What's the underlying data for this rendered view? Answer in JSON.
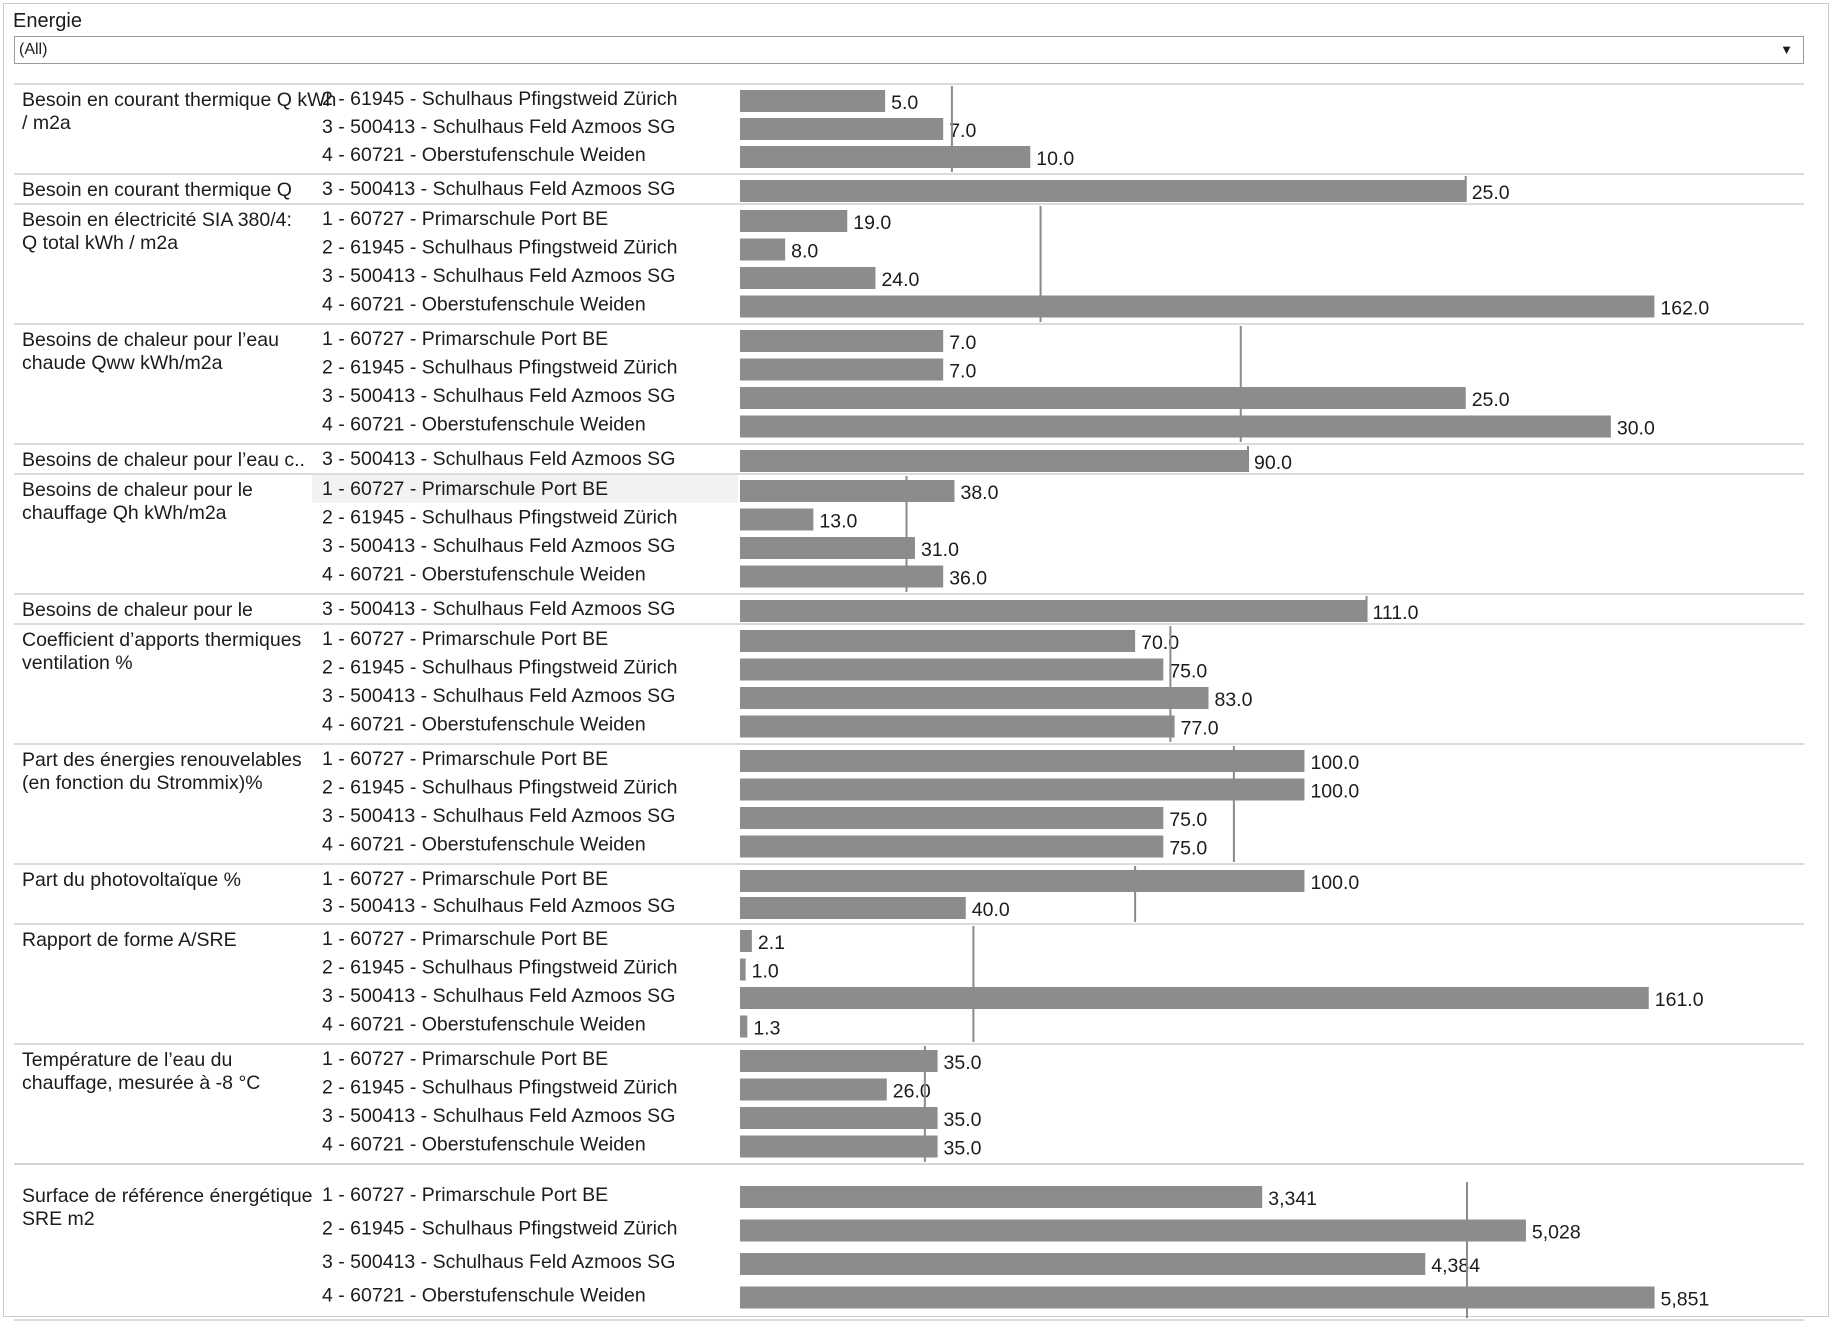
{
  "filter": {
    "label": "Energie",
    "value": "(All)"
  },
  "chart_data": {
    "type": "bar",
    "orientation": "horizontal",
    "bar_color": "#8c8c8c",
    "reference_line_color": "#8a8a8a",
    "groups": [
      {
        "metric": "Besoin en courant thermique Q kWh / m2a",
        "rows": [
          {
            "label": "2 - 61945 - Schulhaus Pfingstweid Zürich",
            "value": 5.0,
            "value_label": "5.0"
          },
          {
            "label": "3 - 500413 - Schulhaus Feld Azmoos SG",
            "value": 7.0,
            "value_label": "7.0"
          },
          {
            "label": "4 - 60721 - Oberstufenschule Weiden",
            "value": 10.0,
            "value_label": "10.0"
          }
        ],
        "xmax": 35,
        "reference": 7.3
      },
      {
        "metric": "Besoin en courant thermique Q",
        "rows": [
          {
            "label": "3 - 500413 - Schulhaus Feld Azmoos SG",
            "value": 25.0,
            "value_label": "25.0"
          }
        ],
        "xmax": 35,
        "reference": 25.0
      },
      {
        "metric": "Besoin en électricité SIA 380/4: Q total kWh / m2a",
        "rows": [
          {
            "label": "1 - 60727 - Primarschule Port BE",
            "value": 19.0,
            "value_label": "19.0"
          },
          {
            "label": "2 - 61945 - Schulhaus Pfingstweid Zürich",
            "value": 8.0,
            "value_label": "8.0"
          },
          {
            "label": "3 - 500413 - Schulhaus Feld Azmoos SG",
            "value": 24.0,
            "value_label": "24.0"
          },
          {
            "label": "4 - 60721 - Oberstufenschule Weiden",
            "value": 162.0,
            "value_label": "162.0"
          }
        ],
        "xmax": 180,
        "reference": 53.25
      },
      {
        "metric": "Besoins de chaleur pour l’eau chaude Qww kWh/m2a",
        "rows": [
          {
            "label": "1 - 60727 - Primarschule Port BE",
            "value": 7.0,
            "value_label": "7.0"
          },
          {
            "label": "2 - 61945 - Schulhaus Pfingstweid Zürich",
            "value": 7.0,
            "value_label": "7.0"
          },
          {
            "label": "3 - 500413 - Schulhaus Feld Azmoos SG",
            "value": 25.0,
            "value_label": "25.0"
          },
          {
            "label": "4 - 60721 - Oberstufenschule Weiden",
            "value": 30.0,
            "value_label": "30.0"
          }
        ],
        "xmax": 35,
        "reference": 17.25
      },
      {
        "metric": "Besoins de chaleur pour l’eau c..",
        "rows": [
          {
            "label": "3 - 500413 - Schulhaus Feld Azmoos SG",
            "value": 90.0,
            "value_label": "90.0"
          }
        ],
        "xmax": 180,
        "reference": 90.0
      },
      {
        "metric": "Besoins de chaleur pour le chauffage Qh kWh/m2a",
        "rows": [
          {
            "label": "1 - 60727 - Primarschule Port BE",
            "value": 38.0,
            "value_label": "38.0"
          },
          {
            "label": "2 - 61945 - Schulhaus Pfingstweid Zürich",
            "value": 13.0,
            "value_label": "13.0"
          },
          {
            "label": "3 - 500413 - Schulhaus Feld Azmoos SG",
            "value": 31.0,
            "value_label": "31.0"
          },
          {
            "label": "4 - 60721 - Oberstufenschule Weiden",
            "value": 36.0,
            "value_label": "36.0"
          }
        ],
        "xmax": 180,
        "reference": 29.5
      },
      {
        "metric": "Besoins de chaleur pour le",
        "rows": [
          {
            "label": "3 - 500413 - Schulhaus Feld Azmoos SG",
            "value": 111.0,
            "value_label": "111.0"
          }
        ],
        "xmax": 180,
        "reference": 111.0
      },
      {
        "metric": "Coefficient d’apports thermiques ventilation %",
        "rows": [
          {
            "label": "1 - 60727 - Primarschule Port BE",
            "value": 70.0,
            "value_label": "70.0"
          },
          {
            "label": "2 - 61945 - Schulhaus Pfingstweid Zürich",
            "value": 75.0,
            "value_label": "75.0"
          },
          {
            "label": "3 - 500413 - Schulhaus Feld Azmoos SG",
            "value": 83.0,
            "value_label": "83.0"
          },
          {
            "label": "4 - 60721 - Oberstufenschule Weiden",
            "value": 77.0,
            "value_label": "77.0"
          }
        ],
        "xmax": 180,
        "reference": 76.25
      },
      {
        "metric": "Part des énergies renouvelables (en fonction du Strommix)%",
        "rows": [
          {
            "label": "1 - 60727 - Primarschule Port BE",
            "value": 100.0,
            "value_label": "100.0"
          },
          {
            "label": "2 - 61945 - Schulhaus Pfingstweid Zürich",
            "value": 100.0,
            "value_label": "100.0"
          },
          {
            "label": "3 - 500413 - Schulhaus Feld Azmoos SG",
            "value": 75.0,
            "value_label": "75.0"
          },
          {
            "label": "4 - 60721 - Oberstufenschule Weiden",
            "value": 75.0,
            "value_label": "75.0"
          }
        ],
        "xmax": 180,
        "reference": 87.5
      },
      {
        "metric": "Part du photovoltaïque %",
        "rows": [
          {
            "label": "1 - 60727 - Primarschule Port BE",
            "value": 100.0,
            "value_label": "100.0"
          },
          {
            "label": "3 - 500413 - Schulhaus Feld Azmoos SG",
            "value": 40.0,
            "value_label": "40.0"
          }
        ],
        "xmax": 180,
        "reference": 70.0
      },
      {
        "metric": "Rapport de forme A/SRE",
        "rows": [
          {
            "label": "1 - 60727 - Primarschule Port BE",
            "value": 2.1,
            "value_label": "2.1"
          },
          {
            "label": "2 - 61945 - Schulhaus Pfingstweid Zürich",
            "value": 1.0,
            "value_label": "1.0"
          },
          {
            "label": "3 - 500413 - Schulhaus Feld Azmoos SG",
            "value": 161.0,
            "value_label": "161.0"
          },
          {
            "label": "4 - 60721 - Oberstufenschule Weiden",
            "value": 1.3,
            "value_label": "1.3"
          }
        ],
        "xmax": 180,
        "reference": 41.35
      },
      {
        "metric": "Température de l’eau du chauffage, mesurée à -8 °C",
        "rows": [
          {
            "label": "1 - 60727 - Primarschule Port BE",
            "value": 35.0,
            "value_label": "35.0"
          },
          {
            "label": "2 - 61945 - Schulhaus Pfingstweid Zürich",
            "value": 26.0,
            "value_label": "26.0"
          },
          {
            "label": "3 - 500413 - Schulhaus Feld Azmoos SG",
            "value": 35.0,
            "value_label": "35.0"
          },
          {
            "label": "4 - 60721 - Oberstufenschule Weiden",
            "value": 35.0,
            "value_label": "35.0"
          }
        ],
        "xmax": 180,
        "reference": 32.75
      },
      {
        "metric": "Surface de référence énergétique SRE m2",
        "rows": [
          {
            "label": "1 - 60727 - Primarschule Port BE",
            "value": 3341,
            "value_label": "3,341"
          },
          {
            "label": "2 - 61945 - Schulhaus Pfingstweid Zürich",
            "value": 5028,
            "value_label": "5,028"
          },
          {
            "label": "3 - 500413 - Schulhaus Feld Azmoos SG",
            "value": 4384,
            "value_label": "4,384"
          },
          {
            "label": "4 - 60721 - Oberstufenschule Weiden",
            "value": 5851,
            "value_label": "5,851"
          }
        ],
        "xmax": 6500,
        "reference": 4651
      }
    ]
  }
}
